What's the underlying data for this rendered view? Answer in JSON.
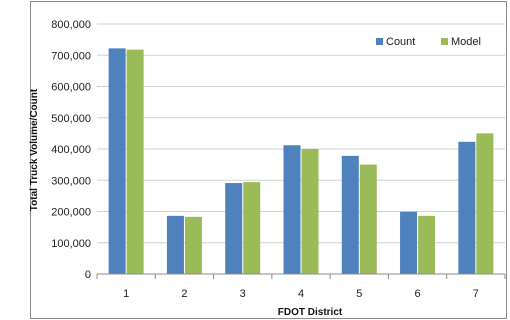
{
  "chart_data": {
    "type": "bar",
    "title": "",
    "xlabel": "FDOT District",
    "ylabel": "Total Truck Volume/Count",
    "categories": [
      "1",
      "2",
      "3",
      "4",
      "5",
      "6",
      "7"
    ],
    "series": [
      {
        "name": "Count",
        "color": "#4f81bd",
        "values": [
          722000,
          186000,
          291000,
          412000,
          378000,
          199000,
          423000
        ]
      },
      {
        "name": "Model",
        "color": "#9bbb59",
        "values": [
          718000,
          183000,
          294000,
          400000,
          350000,
          186000,
          450000
        ]
      }
    ],
    "ylim": [
      0,
      800000
    ],
    "yticks": [
      "0",
      "100,000",
      "200,000",
      "300,000",
      "400,000",
      "500,000",
      "600,000",
      "700,000",
      "800,000"
    ],
    "grid": true,
    "legend": "top-right"
  }
}
